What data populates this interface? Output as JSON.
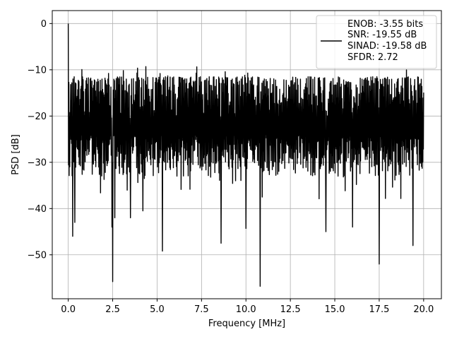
{
  "chart_data": {
    "type": "line",
    "title": "",
    "xlabel": "Frequency [MHz]",
    "ylabel": "PSD [dB]",
    "xlim": [
      -0.9,
      21.0
    ],
    "ylim": [
      -59.5,
      2.8
    ],
    "grid": true,
    "legend_placement": "top-right",
    "x_ticks": [
      0.0,
      2.5,
      5.0,
      7.5,
      10.0,
      12.5,
      15.0,
      17.5,
      20.0
    ],
    "x_tick_labels": [
      "0.0",
      "2.5",
      "5.0",
      "7.5",
      "10.0",
      "12.5",
      "15.0",
      "17.5",
      "20.0"
    ],
    "y_ticks": [
      0,
      -10,
      -20,
      -30,
      -40,
      -50
    ],
    "y_tick_labels": [
      "0",
      "−10",
      "−20",
      "−30",
      "−40",
      "−50"
    ],
    "series": [
      {
        "color": "#000000",
        "legend_lines": [
          "ENOB: -3.55 bits",
          "SNR: -19.55 dB",
          "SINAD: -19.58 dB",
          "SFDR: 2.72"
        ],
        "x_range": [
          0.0,
          20.0
        ],
        "points": 1200,
        "description_level": "noise floor between about -12 and -36 dB, DC spike at 0 dB",
        "peaks": [
          {
            "x": 0.0,
            "y": 0.0
          }
        ],
        "dips": [
          {
            "x": 0.25,
            "y": -46.0
          },
          {
            "x": 0.37,
            "y": -43.0
          },
          {
            "x": 2.46,
            "y": -44.0
          },
          {
            "x": 2.5,
            "y": -55.8
          },
          {
            "x": 2.62,
            "y": -42.0
          },
          {
            "x": 3.5,
            "y": -42.0
          },
          {
            "x": 4.2,
            "y": -40.5
          },
          {
            "x": 5.3,
            "y": -49.2
          },
          {
            "x": 8.6,
            "y": -47.5
          },
          {
            "x": 10.0,
            "y": -44.3
          },
          {
            "x": 10.8,
            "y": -56.8
          },
          {
            "x": 14.5,
            "y": -45.0
          },
          {
            "x": 16.0,
            "y": -44.0
          },
          {
            "x": 17.5,
            "y": -52.0
          },
          {
            "x": 19.4,
            "y": -48.0
          }
        ]
      }
    ]
  }
}
